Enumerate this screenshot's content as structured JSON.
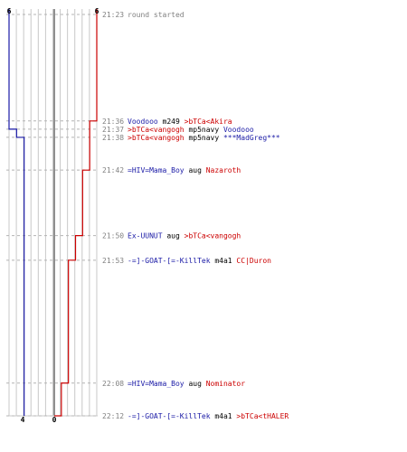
{
  "colors": {
    "blue_team": "#1a1aa6",
    "red_team": "#cc0000",
    "gray_text": "#808080",
    "grid": "#c8c8c8",
    "center": "#6a6a6a",
    "dash": "#b4b4b4"
  },
  "axis_labels": {
    "top_left": "6",
    "top_right": "6",
    "bottom_left": "4",
    "bottom_right": "0"
  },
  "chart_data": {
    "type": "line",
    "scale_max": 6,
    "series": [
      {
        "team": "blue",
        "color": "#1a1aa6",
        "steps": [
          {
            "time": "21:23",
            "value": 6
          },
          {
            "time": "21:36",
            "value": 6
          },
          {
            "time": "21:37",
            "value": 5
          },
          {
            "time": "21:38",
            "value": 4
          },
          {
            "time": "22:12",
            "value": 4
          }
        ]
      },
      {
        "team": "red",
        "color": "#cc0000",
        "steps": [
          {
            "time": "21:23",
            "value": 6
          },
          {
            "time": "21:36",
            "value": 5
          },
          {
            "time": "21:42",
            "value": 4
          },
          {
            "time": "21:50",
            "value": 3
          },
          {
            "time": "21:53",
            "value": 2
          },
          {
            "time": "22:08",
            "value": 1
          },
          {
            "time": "22:12",
            "value": 0
          }
        ]
      }
    ],
    "events": [
      {
        "time": "21:23",
        "parts": [
          {
            "text": "round started",
            "team": "gray"
          }
        ]
      },
      {
        "time": "21:36",
        "parts": [
          {
            "text": "Voodooo",
            "team": "blue"
          },
          {
            "text": " m249 ",
            "team": "black"
          },
          {
            "text": ">bTCa<Akira",
            "team": "red"
          }
        ]
      },
      {
        "time": "21:37",
        "parts": [
          {
            "text": ">bTCa<vangogh",
            "team": "red"
          },
          {
            "text": " mp5navy ",
            "team": "black"
          },
          {
            "text": "Voodooo",
            "team": "blue"
          }
        ]
      },
      {
        "time": "21:38",
        "parts": [
          {
            "text": ">bTCa<vangogh",
            "team": "red"
          },
          {
            "text": " mp5navy ",
            "team": "black"
          },
          {
            "text": "***MadGreg***",
            "team": "blue"
          }
        ]
      },
      {
        "time": "21:42",
        "parts": [
          {
            "text": "=HIV=Mama_Boy",
            "team": "blue"
          },
          {
            "text": " aug ",
            "team": "black"
          },
          {
            "text": "Nazaroth",
            "team": "red"
          }
        ]
      },
      {
        "time": "21:50",
        "parts": [
          {
            "text": "Ex-UUNUT",
            "team": "blue"
          },
          {
            "text": " aug ",
            "team": "black"
          },
          {
            "text": ">bTCa<vangogh",
            "team": "red"
          }
        ]
      },
      {
        "time": "21:53",
        "parts": [
          {
            "text": "-=]-GOAT-[=-KillTek",
            "team": "blue"
          },
          {
            "text": " m4a1 ",
            "team": "black"
          },
          {
            "text": "CC|Duron",
            "team": "red"
          }
        ]
      },
      {
        "time": "22:08",
        "parts": [
          {
            "text": "=HIV=Mama_Boy",
            "team": "blue"
          },
          {
            "text": " aug ",
            "team": "black"
          },
          {
            "text": "Nominator",
            "team": "red"
          }
        ]
      },
      {
        "time": "22:12",
        "parts": [
          {
            "text": "-=]-GOAT-[=-KillTek",
            "team": "blue"
          },
          {
            "text": " m4a1 ",
            "team": "black"
          },
          {
            "text": ">bTCa<tHALER",
            "team": "red"
          }
        ]
      }
    ]
  }
}
